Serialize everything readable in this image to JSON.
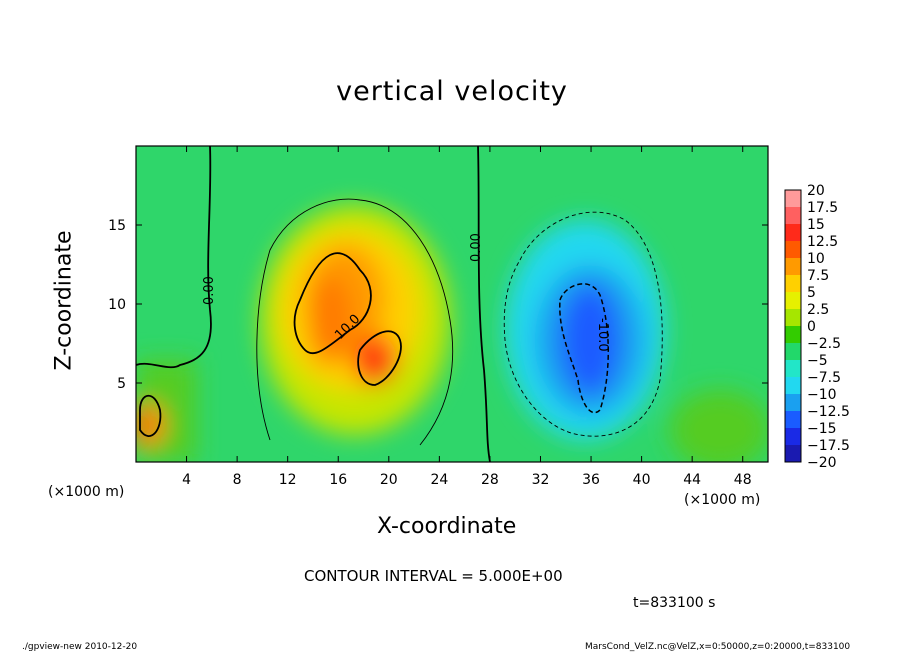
{
  "chart_data": {
    "type": "heatmap",
    "title": "vertical velocity",
    "xlabel": "X-coordinate",
    "ylabel": "Z-coordinate",
    "x_unit_label": "(×1000 m)",
    "xlim": [
      0,
      50
    ],
    "ylim": [
      0,
      20
    ],
    "xticks": [
      4,
      8,
      12,
      16,
      20,
      24,
      28,
      32,
      36,
      40,
      44,
      48
    ],
    "yticks": [
      5,
      10,
      15
    ],
    "colorbar": {
      "levels": [
        "20",
        "17.5",
        "15",
        "12.5",
        "10",
        "7.5",
        "5",
        "2.5",
        "0",
        "−2.5",
        "−5",
        "−7.5",
        "−10",
        "−12.5",
        "−15",
        "−17.5",
        "−20"
      ],
      "colors": [
        "#ff9a9a",
        "#ff6060",
        "#ff2a1a",
        "#ff5a00",
        "#ff9a00",
        "#ffd000",
        "#e6f000",
        "#a6e600",
        "#33cc00",
        "#22d86a",
        "#22e6c8",
        "#22d8f0",
        "#1aa0f0",
        "#1a5cff",
        "#1a2ae6",
        "#1a1ab0",
        "#6a1ab8"
      ]
    },
    "contour_interval": "CONTOUR INTERVAL = 5.000E+00",
    "contour_labels": [
      "0.00",
      "0.00",
      "10.0",
      "-10.0"
    ],
    "features": [
      {
        "x": 15,
        "z": 9,
        "value": 12.5
      },
      {
        "x": 19,
        "z": 6,
        "value": 15
      },
      {
        "x": 36,
        "z": 8,
        "value": -13
      },
      {
        "x": 1,
        "z": 2.5,
        "value": 12
      }
    ]
  },
  "time_label": "t=833100 s",
  "footer": {
    "left": "./gpview-new  2010-12-20",
    "right": "MarsCond_VelZ.nc@VelZ,x=0:50000,z=0:20000,t=833100"
  }
}
